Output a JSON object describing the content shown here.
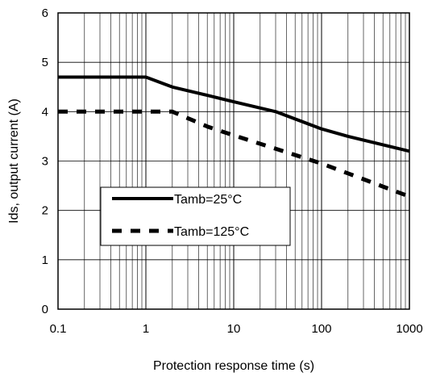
{
  "chart_data": {
    "type": "line",
    "xlabel": "Protection response time (s)",
    "ylabel": "Ids, output current (A)",
    "x_scale": "log",
    "xlim": [
      0.1,
      1000
    ],
    "ylim": [
      0,
      6
    ],
    "x_ticks": [
      0.1,
      1,
      10,
      100,
      1000
    ],
    "x_tick_labels": [
      "0.1",
      "1",
      "10",
      "100",
      "1000"
    ],
    "y_ticks": [
      0,
      1,
      2,
      3,
      4,
      5,
      6
    ],
    "y_tick_labels": [
      "0",
      "1",
      "2",
      "3",
      "4",
      "5",
      "6"
    ],
    "grid": true,
    "legend_position": "center-left",
    "series": [
      {
        "name": "Tamb=25°C",
        "style": "solid",
        "color": "#000000",
        "x": [
          0.1,
          1,
          2,
          5,
          10,
          30,
          100,
          200,
          1000
        ],
        "y": [
          4.7,
          4.7,
          4.5,
          4.33,
          4.2,
          4.0,
          3.65,
          3.5,
          3.2
        ]
      },
      {
        "name": "Tamb=125°C",
        "style": "dashed",
        "color": "#000000",
        "x": [
          0.1,
          1,
          2,
          5,
          10,
          30,
          100,
          200,
          1000
        ],
        "y": [
          4.0,
          4.0,
          4.0,
          3.7,
          3.52,
          3.25,
          2.95,
          2.75,
          2.28
        ]
      }
    ]
  }
}
